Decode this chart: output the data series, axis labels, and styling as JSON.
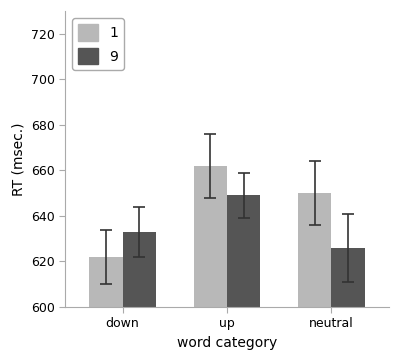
{
  "categories": [
    "down",
    "up",
    "neutral"
  ],
  "series": {
    "1": {
      "values": [
        622,
        662,
        650
      ],
      "errors": [
        12,
        14,
        14
      ],
      "color": "#b8b8b8"
    },
    "9": {
      "values": [
        633,
        649,
        626
      ],
      "errors": [
        11,
        10,
        15
      ],
      "color": "#555555"
    }
  },
  "legend_labels": [
    "1",
    "9"
  ],
  "xlabel": "word category",
  "ylabel": "RT (msec.)",
  "ylim": [
    600,
    730
  ],
  "yticks": [
    600,
    620,
    640,
    660,
    680,
    700,
    720
  ],
  "bar_width": 0.32,
  "background_color": "#ffffff",
  "axis_fontsize": 10,
  "tick_fontsize": 9,
  "legend_fontsize": 10,
  "error_capsize": 4,
  "error_linewidth": 1.2
}
